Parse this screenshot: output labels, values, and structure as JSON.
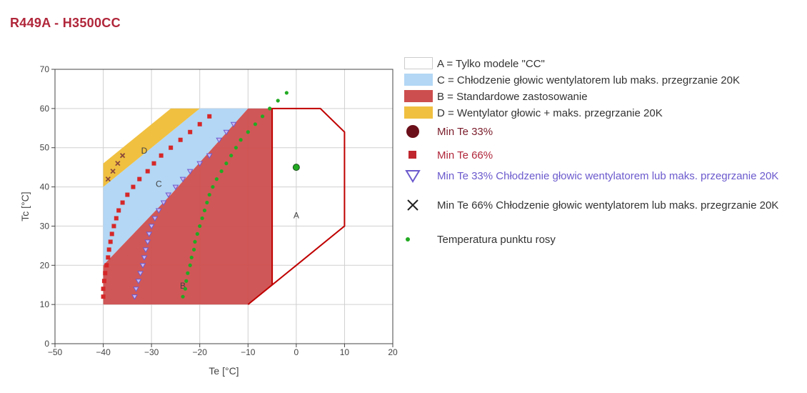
{
  "title": "R449A - H3500CC",
  "chart_data": {
    "type": "scatter",
    "xlabel": "Te [°C]",
    "ylabel": "Tc [°C]",
    "xlim": [
      -50,
      20
    ],
    "ylim": [
      0,
      70
    ],
    "xticks": [
      -50,
      -40,
      -30,
      -20,
      -10,
      0,
      10,
      20
    ],
    "yticks": [
      0,
      10,
      20,
      30,
      40,
      50,
      60,
      70
    ],
    "grid": true,
    "legend_position": "right",
    "regions": [
      {
        "key": "A",
        "name": "A = Tylko modele \"CC\"",
        "fill": "#ffffff",
        "stroke": "#c00000",
        "label_point": [
          0,
          32
        ],
        "polygon": [
          [
            -10,
            10
          ],
          [
            -5,
            15
          ],
          [
            -5,
            60
          ],
          [
            5,
            60
          ],
          [
            10,
            54
          ],
          [
            10,
            30
          ],
          [
            0,
            20
          ],
          [
            -5,
            15
          ]
        ]
      },
      {
        "key": "C",
        "name": "C = Chłodzenie głowic wentylatorem lub maks. przegrzanie 20K",
        "fill": "#b3d7f5",
        "label_point": [
          -28.5,
          40
        ],
        "polygon": [
          [
            -40,
            20
          ],
          [
            -40,
            40
          ],
          [
            -20,
            60
          ],
          [
            -10,
            60
          ],
          [
            -26,
            38
          ]
        ]
      },
      {
        "key": "B",
        "name": "B = Standardowe zastosowanie",
        "fill": "#cd4e4e",
        "label_point": [
          -23.5,
          14
        ],
        "polygon": [
          [
            -40,
            10
          ],
          [
            -40,
            20
          ],
          [
            -26,
            38
          ],
          [
            -10,
            60
          ],
          [
            -5,
            60
          ],
          [
            -5,
            15
          ],
          [
            -10,
            10
          ]
        ]
      },
      {
        "key": "D",
        "name": "D = Wentylator głowic + maks. przegrzanie 20K",
        "fill": "#f0c040",
        "label_point": [
          -31.5,
          48.5
        ],
        "polygon": [
          [
            -40,
            40
          ],
          [
            -40,
            46
          ],
          [
            -26,
            60
          ],
          [
            -15,
            60
          ],
          [
            -20,
            60
          ]
        ]
      }
    ],
    "series": [
      {
        "name": "Min Te 33%",
        "marker": "circle",
        "color": "#6b0f1a",
        "x": [],
        "y": []
      },
      {
        "name": "Min Te 66%",
        "marker": "square",
        "color": "#d62728",
        "x": [
          -40,
          -40,
          -39.8,
          -39.6,
          -39.3,
          -39,
          -38.8,
          -38.5,
          -38.2,
          -37.8,
          -37.3,
          -36.8,
          -36,
          -35,
          -33.8,
          -32.5,
          -30.8,
          -29.5,
          -28,
          -26,
          -24,
          -22,
          -20,
          -18
        ],
        "y": [
          12,
          14,
          16,
          18,
          20,
          22,
          24,
          26,
          28,
          30,
          32,
          34,
          36,
          38,
          40,
          42,
          44,
          46,
          48,
          50,
          52,
          54,
          56,
          58
        ]
      },
      {
        "name": "Min Te 33% Chłodzenie głowic wentylatorem lub maks. przegrzanie 20K",
        "marker": "triangle",
        "color": "#6b5acd",
        "x": [
          -33.5,
          -33.2,
          -32.7,
          -32.3,
          -31.8,
          -31.5,
          -31.2,
          -30.8,
          -30.5,
          -30,
          -29.3,
          -28.5,
          -27.5,
          -26.5,
          -25,
          -23.5,
          -22,
          -20,
          -18,
          -16,
          -14.5,
          -13
        ],
        "y": [
          12,
          14,
          16,
          18,
          20,
          22,
          24,
          26,
          28,
          30,
          32,
          34,
          36,
          38,
          40,
          42,
          44,
          46,
          48,
          52,
          54,
          56
        ]
      },
      {
        "name": "Min Te 66% Chłodzenie głowic wentylatorem lub maks. przegrzanie 20K",
        "marker": "x",
        "color": "#8b4a3a",
        "x": [
          -39,
          -38,
          -37,
          -36
        ],
        "y": [
          42,
          44,
          46,
          48
        ]
      },
      {
        "name": "Temperatura punktu rosy",
        "marker": "dot",
        "color": "#22aa22",
        "x": [
          -23.5,
          -23,
          -22.8,
          -22.5,
          -22,
          -21.7,
          -21.2,
          -21,
          -20.5,
          -20,
          -19.5,
          -19,
          -18.5,
          -18,
          -17.3,
          -16.5,
          -15.5,
          -14.5,
          -13.5,
          -12.5,
          -11.5,
          -10,
          -8.5,
          -7,
          -5.5,
          -3.8,
          -2
        ],
        "y": [
          12,
          14,
          16,
          18,
          20,
          22,
          24,
          26,
          28,
          30,
          32,
          34,
          36,
          38,
          40,
          42,
          44,
          46,
          48,
          50,
          52,
          54,
          56,
          58,
          60,
          62,
          64
        ]
      }
    ],
    "extra_point": {
      "x": 0,
      "y": 45,
      "color": "#22aa22"
    }
  },
  "legend": [
    {
      "kind": "swatch",
      "fill": "#ffffff",
      "stroke": "#cccccc",
      "label": "A = Tylko modele \"CC\"",
      "text_color": "#333333"
    },
    {
      "kind": "swatch",
      "fill": "#b3d7f5",
      "stroke": "#b3d7f5",
      "label": "C = Chłodzenie głowic wentylatorem lub maks. przegrzanie 20K",
      "text_color": "#333333"
    },
    {
      "kind": "swatch",
      "fill": "#cd4e4e",
      "stroke": "#cd4e4e",
      "label": "B = Standardowe zastosowanie",
      "text_color": "#333333"
    },
    {
      "kind": "swatch",
      "fill": "#f0c040",
      "stroke": "#f0c040",
      "label": "D = Wentylator głowic + maks. przegrzanie 20K",
      "text_color": "#333333"
    },
    {
      "kind": "circle",
      "color": "#6b0f1a",
      "label": "Min Te 33%",
      "text_color": "#7a1c2a"
    },
    {
      "kind": "square",
      "color": "#c0262e",
      "label": "Min Te 66%",
      "text_color": "#b0263a"
    },
    {
      "kind": "triangle",
      "color": "#6b5acd",
      "label": "Min Te 33% Chłodzenie głowic wentylatorem lub maks. przegrzanie 20K",
      "text_color": "#6b5acd"
    },
    {
      "kind": "x",
      "color": "#222222",
      "label": "Min Te 66% Chłodzenie głowic wentylatorem lub maks. przegrzanie 20K",
      "text_color": "#333333"
    },
    {
      "kind": "dot",
      "color": "#22aa22",
      "label": "Temperatura punktu rosy",
      "text_color": "#333333"
    }
  ]
}
